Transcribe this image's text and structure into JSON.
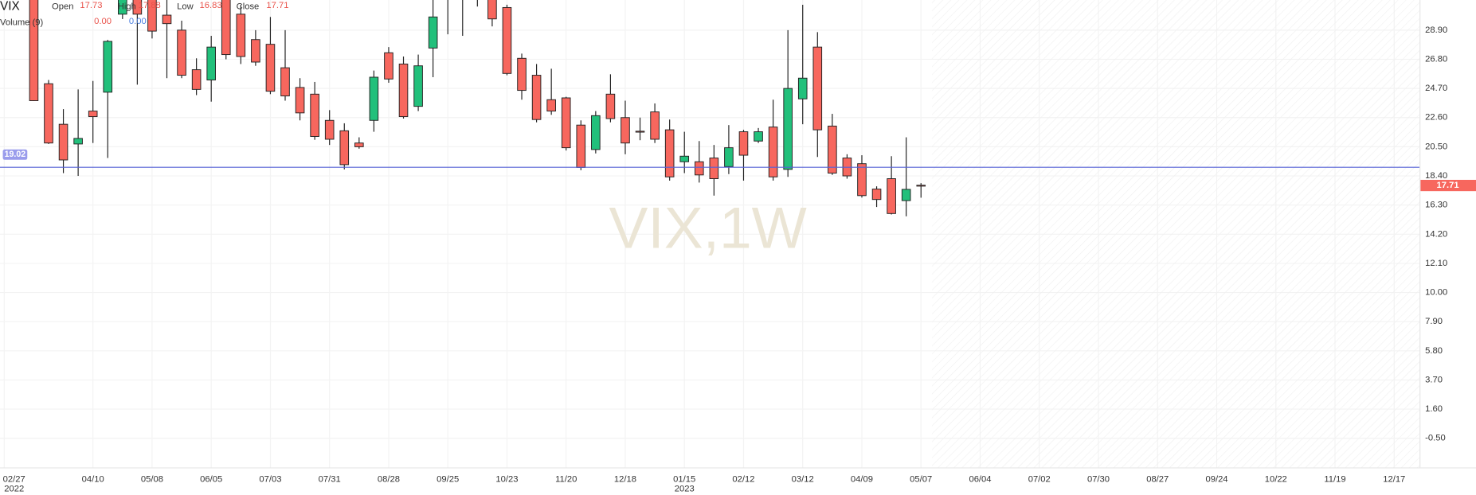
{
  "chart_data": {
    "type": "candlestick",
    "symbol": "VIX",
    "watermark": "VIX,1W",
    "ohlc_labels": [
      "Open",
      "High",
      "Low",
      "Close"
    ],
    "volume": {
      "label": "Volume (9)",
      "values": [
        "0.00",
        "0.00"
      ]
    },
    "x": [
      "2022-03-13",
      "2022-03-20",
      "2022-03-27",
      "2022-04-03",
      "2022-04-10",
      "2022-04-17",
      "2022-04-24",
      "2022-05-01",
      "2022-05-08",
      "2022-05-15",
      "2022-05-22",
      "2022-05-29",
      "2022-06-05",
      "2022-06-12",
      "2022-06-19",
      "2022-06-26",
      "2022-07-03",
      "2022-07-10",
      "2022-07-17",
      "2022-07-24",
      "2022-07-31",
      "2022-08-07",
      "2022-08-14",
      "2022-08-21",
      "2022-08-28",
      "2022-09-04",
      "2022-09-11",
      "2022-09-18",
      "2022-09-25",
      "2022-10-02",
      "2022-10-09",
      "2022-10-16",
      "2022-10-23",
      "2022-10-30",
      "2022-11-06",
      "2022-11-13",
      "2022-11-20",
      "2022-11-27",
      "2022-12-04",
      "2022-12-11",
      "2022-12-18",
      "2022-12-25",
      "2023-01-01",
      "2023-01-08",
      "2023-01-15",
      "2023-01-22",
      "2023-01-29",
      "2023-02-05",
      "2023-02-12",
      "2023-02-19",
      "2023-02-26",
      "2023-03-05",
      "2023-03-12",
      "2023-03-19",
      "2023-03-26",
      "2023-04-02",
      "2023-04-09",
      "2023-04-16",
      "2023-04-23",
      "2023-04-30",
      "2023-05-07"
    ],
    "open": [
      32.0,
      25.04,
      22.12,
      20.7,
      23.07,
      24.43,
      30.05,
      32.0,
      32.0,
      29.98,
      28.9,
      26.05,
      25.31,
      32.0,
      30.05,
      28.22,
      27.88,
      26.19,
      24.77,
      24.29,
      22.4,
      21.65,
      20.77,
      22.4,
      27.27,
      26.46,
      23.41,
      27.61,
      31.8,
      32.2,
      32.5,
      32.0,
      30.53,
      26.87,
      25.65,
      23.89,
      24.02,
      22.06,
      20.3,
      24.29,
      22.6,
      21.62,
      23.01,
      21.72,
      19.42,
      19.42,
      19.69,
      19.07,
      21.58,
      20.91,
      21.92,
      18.87,
      23.95,
      27.68,
      21.99,
      19.69,
      19.28,
      17.45,
      18.2,
      16.62,
      17.73
    ],
    "high": [
      33.0,
      25.31,
      23.21,
      24.63,
      25.24,
      28.2,
      33.0,
      33.0,
      33.0,
      31.5,
      29.58,
      26.87,
      28.49,
      33.0,
      30.73,
      28.9,
      29.85,
      28.9,
      25.44,
      25.17,
      23.14,
      22.19,
      21.18,
      25.99,
      27.68,
      27.0,
      27.14,
      31.5,
      33.0,
      33.0,
      33.0,
      33.0,
      30.73,
      27.21,
      26.46,
      26.12,
      24.1,
      22.4,
      23.07,
      25.72,
      23.82,
      22.6,
      23.62,
      22.46,
      21.58,
      20.91,
      20.63,
      22.06,
      21.72,
      21.85,
      23.89,
      28.9,
      30.73,
      28.76,
      22.87,
      19.96,
      19.89,
      17.65,
      19.82,
      21.18,
      17.88
    ],
    "low": [
      23.8,
      20.7,
      18.6,
      18.4,
      20.77,
      19.69,
      29.7,
      24.97,
      28.3,
      25.44,
      25.44,
      24.22,
      23.75,
      26.8,
      26.46,
      26.33,
      24.29,
      23.82,
      22.4,
      21.0,
      20.63,
      18.87,
      20.36,
      21.58,
      25.11,
      22.53,
      23.07,
      25.51,
      28.6,
      28.49,
      30.6,
      29.17,
      25.65,
      23.89,
      22.26,
      22.8,
      20.23,
      18.81,
      20.02,
      22.26,
      19.96,
      20.97,
      20.77,
      18.06,
      18.6,
      17.92,
      16.98,
      18.53,
      18.06,
      20.77,
      18.06,
      18.33,
      22.12,
      19.76,
      18.47,
      18.2,
      16.84,
      16.16,
      15.62,
      15.49,
      16.83
    ],
    "close": [
      23.82,
      20.77,
      19.55,
      21.1,
      22.67,
      28.09,
      32.0,
      30.05,
      28.83,
      29.37,
      25.65,
      24.63,
      27.68,
      27.14,
      27.0,
      26.6,
      24.5,
      24.16,
      22.94,
      21.24,
      21.04,
      19.21,
      20.5,
      25.51,
      25.38,
      22.67,
      26.33,
      29.85,
      31.5,
      31.9,
      32.0,
      29.71,
      25.78,
      24.56,
      22.46,
      23.07,
      20.43,
      19.01,
      22.74,
      22.53,
      20.77,
      21.58,
      21.04,
      18.33,
      19.82,
      18.47,
      18.2,
      20.43,
      19.89,
      21.58,
      18.33,
      24.7,
      25.44,
      21.72,
      18.6,
      18.4,
      16.98,
      16.7,
      15.69,
      17.43,
      17.71
    ],
    "up_color": "#22c07b",
    "down_color": "#f7675e",
    "price_line": 19.02,
    "price_line_color": "#5560d6",
    "ylim": [
      -2.6,
      31.07
    ],
    "yticks": [
      {
        "value": 28.9,
        "label": "28.90"
      },
      {
        "value": 26.8,
        "label": "26.80"
      },
      {
        "value": 24.7,
        "label": "24.70"
      },
      {
        "value": 22.6,
        "label": "22.60"
      },
      {
        "value": 20.5,
        "label": "20.50"
      },
      {
        "value": 18.4,
        "label": "18.40"
      },
      {
        "value": 16.3,
        "label": "16.30"
      },
      {
        "value": 14.2,
        "label": "14.20"
      },
      {
        "value": 12.1,
        "label": "12.10"
      },
      {
        "value": 10,
        "label": "10.00"
      },
      {
        "value": 7.9,
        "label": "7.90"
      },
      {
        "value": 5.8,
        "label": "5.80"
      },
      {
        "value": 3.7,
        "label": "3.70"
      },
      {
        "value": 1.6,
        "label": "1.60"
      },
      {
        "value": -0.5,
        "label": "-0.50"
      }
    ],
    "xlim": [
      "2022-02-25",
      "2023-12-29"
    ],
    "xticks": [
      {
        "value": "2022-02-27",
        "label": "02/27"
      },
      {
        "value": "2022-04-10",
        "label": "04/10"
      },
      {
        "value": "2022-05-08",
        "label": "05/08"
      },
      {
        "value": "2022-06-05",
        "label": "06/05"
      },
      {
        "value": "2022-07-03",
        "label": "07/03"
      },
      {
        "value": "2022-07-31",
        "label": "07/31"
      },
      {
        "value": "2022-08-28",
        "label": "08/28"
      },
      {
        "value": "2022-09-25",
        "label": "09/25"
      },
      {
        "value": "2022-10-23",
        "label": "10/23"
      },
      {
        "value": "2022-11-20",
        "label": "11/20"
      },
      {
        "value": "2022-12-18",
        "label": "12/18"
      },
      {
        "value": "2023-01-15",
        "label": "01/15"
      },
      {
        "value": "2023-02-12",
        "label": "02/12"
      },
      {
        "value": "2023-03-12",
        "label": "03/12"
      },
      {
        "value": "2023-04-09",
        "label": "04/09"
      },
      {
        "value": "2023-05-07",
        "label": "05/07"
      },
      {
        "value": "2023-06-04",
        "label": "06/04"
      },
      {
        "value": "2023-07-02",
        "label": "07/02"
      },
      {
        "value": "2023-07-30",
        "label": "07/30"
      },
      {
        "value": "2023-08-27",
        "label": "08/27"
      },
      {
        "value": "2023-09-24",
        "label": "09/24"
      },
      {
        "value": "2023-10-22",
        "label": "10/22"
      },
      {
        "value": "2023-11-19",
        "label": "11/19"
      },
      {
        "value": "2023-12-17",
        "label": "12/17"
      }
    ],
    "xyears": [
      {
        "value": "2022-02-27",
        "label": "2022"
      },
      {
        "value": "2023-01-15",
        "label": "2023"
      }
    ],
    "grid": true
  }
}
